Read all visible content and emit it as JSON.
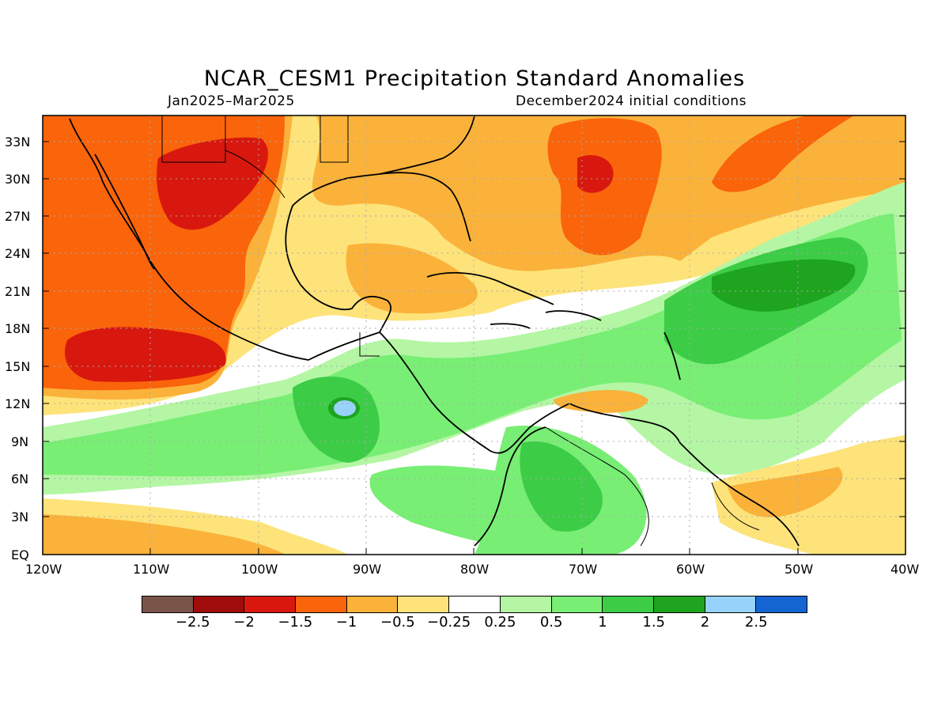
{
  "title": "NCAR_CESM1 Precipitation Standard Anomalies",
  "period": "Jan2025–Mar2025",
  "init": "December2024 initial conditions",
  "lat_labels": [
    "33N",
    "30N",
    "27N",
    "24N",
    "21N",
    "18N",
    "15N",
    "12N",
    "9N",
    "6N",
    "3N",
    "EQ"
  ],
  "lon_labels": [
    "120W",
    "110W",
    "100W",
    "90W",
    "80W",
    "70W",
    "60W",
    "50W",
    "40W"
  ],
  "colorbar": {
    "colors": [
      "#785548",
      "#a00c0c",
      "#d8180e",
      "#fa640a",
      "#fbb23a",
      "#fde37a",
      "#ffffff",
      "#b4f6a4",
      "#78ee74",
      "#3ccc46",
      "#1ea41e",
      "#96d2fa",
      "#1464d2"
    ],
    "labels": [
      "−2.5",
      "−2",
      "−1.5",
      "−1",
      "−0.5",
      "−0.25",
      "0.25",
      "0.5",
      "1",
      "1.5",
      "2",
      "2.5"
    ]
  },
  "icons": {
    "map": "precipitation-anomaly-map"
  }
}
